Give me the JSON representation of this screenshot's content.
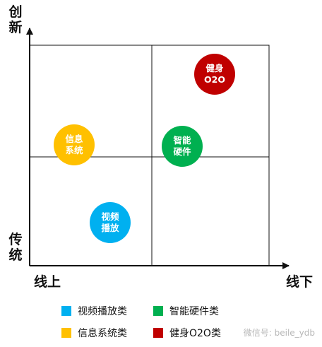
{
  "axes": {
    "y_top_label": [
      "创",
      "新"
    ],
    "y_bottom_label": [
      "传",
      "统"
    ],
    "x_left_label": "线上",
    "x_right_label": "线下"
  },
  "bubbles": [
    {
      "text": "健身O2O",
      "lines": [
        "健身",
        "O2O"
      ],
      "color": "#c00000"
    },
    {
      "text": "信息系统",
      "lines": [
        "信息",
        "系统"
      ],
      "color": "#ffc000"
    },
    {
      "text": "智能硬件",
      "lines": [
        "智能",
        "硬件"
      ],
      "color": "#00b050"
    },
    {
      "text": "视频播放",
      "lines": [
        "视频",
        "播放"
      ],
      "color": "#00b0f0"
    }
  ],
  "legend": [
    {
      "label": "视频播放类",
      "color": "#00b0f0"
    },
    {
      "label": "智能硬件类",
      "color": "#00b050"
    },
    {
      "label": "信息系统类",
      "color": "#ffc000"
    },
    {
      "label": "健身O2O类",
      "color": "#c00000"
    }
  ],
  "watermark": "微信号: beile_ydb",
  "colors": {
    "axis": "#111111",
    "grid": "#111111"
  }
}
